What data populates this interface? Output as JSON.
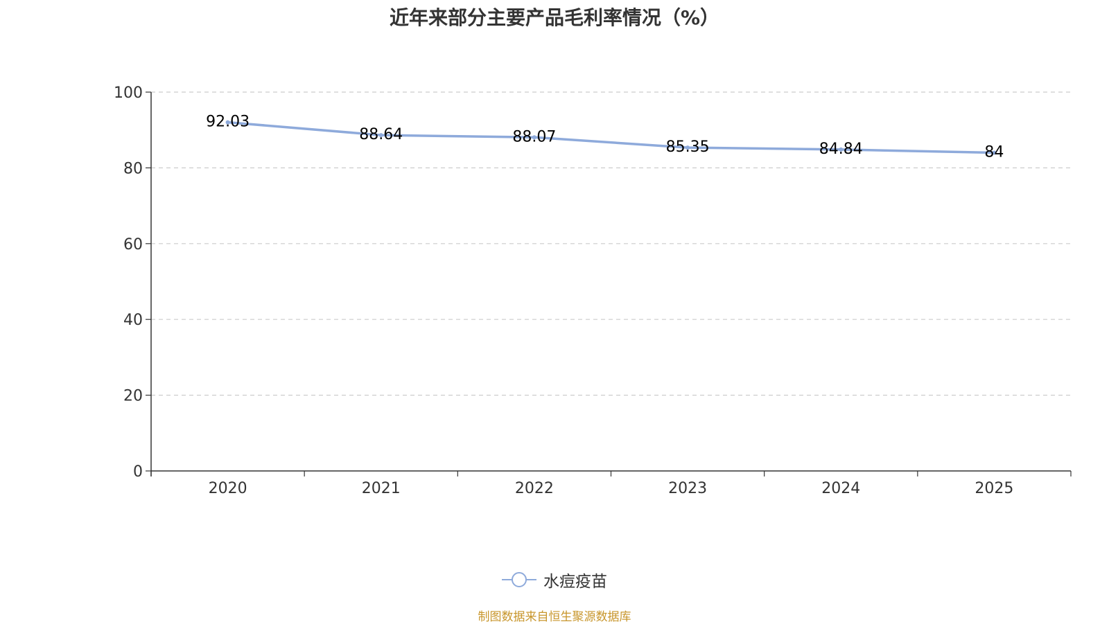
{
  "title": "近年来部分主要产品毛利率情况（%）",
  "source_note": "制图数据来自恒生聚源数据库",
  "colors": {
    "line": "#8eaadb",
    "source_note": "#c8962c",
    "grid": "#cccccc",
    "axis": "#333333"
  },
  "chart_data": {
    "type": "line",
    "title": "近年来部分主要产品毛利率情况（%）",
    "xlabel": "",
    "ylabel": "",
    "categories": [
      "2020",
      "2021",
      "2022",
      "2023",
      "2024",
      "2025"
    ],
    "series": [
      {
        "name": "水痘疫苗",
        "values": [
          92.03,
          88.64,
          88.07,
          85.35,
          84.84,
          84
        ]
      }
    ],
    "data_labels": [
      "92.03",
      "88.64",
      "88.07",
      "85.35",
      "84.84",
      "84"
    ],
    "ylim": [
      0,
      100
    ],
    "yticks": [
      "0",
      "20",
      "40",
      "60",
      "80",
      "100"
    ],
    "grid": true,
    "legend_position": "bottom"
  }
}
